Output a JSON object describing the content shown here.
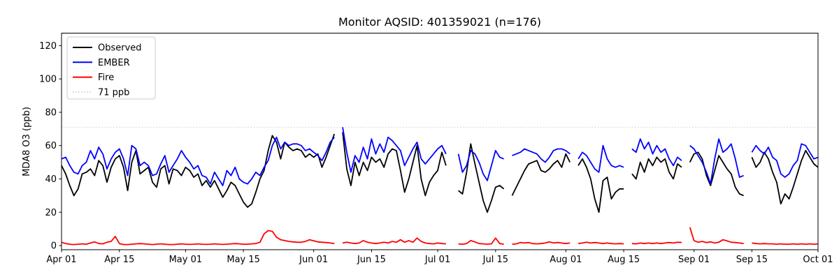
{
  "chart_data": {
    "type": "line",
    "title": "Monitor AQSID: 401359021 (n=176)",
    "xlabel": "",
    "ylabel": "MDA8 O3 (ppb)",
    "x_range_days": [
      0,
      183
    ],
    "x_start_date": "Apr 01",
    "x_end_date": "Oct 01",
    "ylim": [
      -2.5,
      127.5
    ],
    "yticks": [
      0,
      20,
      40,
      60,
      80,
      100,
      120
    ],
    "xticks": [
      {
        "day": 0,
        "label": "Apr 01"
      },
      {
        "day": 14,
        "label": "Apr 15"
      },
      {
        "day": 30,
        "label": "May 01"
      },
      {
        "day": 44,
        "label": "May 15"
      },
      {
        "day": 61,
        "label": "Jun 01"
      },
      {
        "day": 75,
        "label": "Jun 15"
      },
      {
        "day": 91,
        "label": "Jul 01"
      },
      {
        "day": 105,
        "label": "Jul 15"
      },
      {
        "day": 122,
        "label": "Aug 01"
      },
      {
        "day": 136,
        "label": "Aug 15"
      },
      {
        "day": 153,
        "label": "Sep 01"
      },
      {
        "day": 167,
        "label": "Sep 15"
      },
      {
        "day": 183,
        "label": "Oct 01"
      }
    ],
    "grid": false,
    "legend_position": "upper left",
    "threshold": {
      "label": "71 ppb",
      "value": 71,
      "color": "#d3d3d3",
      "style": "dotted"
    },
    "series": [
      {
        "name": "Observed",
        "color": "#000000",
        "values": [
          48,
          43,
          36,
          30,
          34,
          43,
          44,
          46,
          42,
          51,
          48,
          38,
          47,
          52,
          54,
          47,
          33,
          50,
          57,
          43,
          45,
          47,
          38,
          35,
          46,
          48,
          37,
          46,
          45,
          42,
          47,
          45,
          41,
          43,
          36,
          39,
          35,
          39,
          34,
          29,
          33,
          38,
          36,
          31,
          26,
          23,
          25,
          32,
          40,
          45,
          57,
          66,
          62,
          52,
          62,
          59,
          57,
          58,
          57,
          53,
          55,
          53,
          55,
          47,
          53,
          60,
          67,
          null,
          68,
          46,
          36,
          50,
          42,
          50,
          45,
          53,
          50,
          52,
          47,
          55,
          58,
          57,
          45,
          32,
          40,
          50,
          60,
          40,
          30,
          38,
          42,
          45,
          56,
          48,
          null,
          null,
          33,
          31,
          44,
          61,
          49,
          38,
          27,
          20,
          27,
          35,
          36,
          34,
          null,
          30,
          35,
          40,
          45,
          49,
          50,
          51,
          45,
          44,
          46,
          49,
          51,
          47,
          55,
          50,
          null,
          48,
          52,
          47,
          40,
          28,
          20,
          39,
          41,
          28,
          32,
          34,
          34,
          null,
          43,
          40,
          50,
          44,
          52,
          48,
          53,
          50,
          52,
          44,
          40,
          49,
          47,
          null,
          50,
          55,
          56,
          52,
          42,
          36,
          45,
          54,
          50,
          46,
          43,
          35,
          31,
          30,
          null,
          53,
          47,
          50,
          56,
          52,
          44,
          38,
          25,
          31,
          28,
          35,
          43,
          51,
          57,
          53,
          49,
          47
        ]
      },
      {
        "name": "EMBER",
        "color": "#0000ff",
        "values": [
          52,
          53,
          48,
          44,
          43,
          48,
          50,
          57,
          52,
          59,
          55,
          46,
          52,
          56,
          58,
          52,
          42,
          60,
          58,
          48,
          50,
          48,
          42,
          43,
          49,
          54,
          44,
          48,
          52,
          57,
          53,
          50,
          46,
          48,
          42,
          41,
          37,
          44,
          40,
          36,
          45,
          42,
          47,
          40,
          38,
          37,
          40,
          44,
          42,
          47,
          51,
          60,
          65,
          58,
          62,
          60,
          61,
          61,
          60,
          57,
          58,
          56,
          54,
          51,
          56,
          62,
          65,
          null,
          71,
          56,
          44,
          54,
          50,
          59,
          52,
          64,
          55,
          61,
          56,
          65,
          63,
          60,
          57,
          48,
          53,
          58,
          62,
          52,
          49,
          52,
          55,
          58,
          60,
          55,
          null,
          null,
          55,
          44,
          48,
          57,
          55,
          50,
          43,
          39,
          48,
          57,
          53,
          52,
          null,
          54,
          55,
          56,
          58,
          57,
          56,
          55,
          52,
          50,
          53,
          57,
          58,
          58,
          57,
          55,
          null,
          52,
          56,
          54,
          50,
          46,
          44,
          60,
          52,
          48,
          47,
          48,
          47,
          null,
          58,
          56,
          64,
          58,
          62,
          55,
          60,
          56,
          58,
          52,
          48,
          53,
          51,
          null,
          60,
          58,
          54,
          50,
          44,
          37,
          52,
          64,
          56,
          58,
          61,
          52,
          41,
          42,
          null,
          56,
          60,
          57,
          55,
          59,
          53,
          51,
          43,
          41,
          43,
          48,
          51,
          61,
          60,
          56,
          52,
          53
        ]
      },
      {
        "name": "Fire",
        "color": "#ff0000",
        "values": [
          2,
          1.2,
          0.8,
          0.6,
          0.8,
          1,
          0.8,
          1.5,
          2.2,
          1.2,
          1,
          2,
          2.5,
          5.5,
          1.2,
          0.6,
          0.6,
          0.8,
          1,
          1.2,
          1,
          0.8,
          0.6,
          0.8,
          1,
          0.8,
          0.6,
          0.6,
          0.8,
          1,
          0.8,
          0.7,
          0.8,
          1,
          0.8,
          0.7,
          0.8,
          1,
          0.8,
          0.7,
          0.8,
          1,
          1.2,
          1,
          0.8,
          0.8,
          1,
          1.2,
          2,
          7,
          9,
          8.5,
          5,
          3.5,
          3,
          2.5,
          2.2,
          2,
          2,
          2.5,
          3.5,
          2.8,
          2.2,
          2,
          1.8,
          1.5,
          1.2,
          null,
          1.5,
          2,
          1.5,
          1.2,
          1.5,
          3,
          2,
          1.5,
          1.2,
          1.5,
          2,
          1.5,
          2.5,
          2,
          3.5,
          2,
          3,
          2,
          4.5,
          2.5,
          1.5,
          1.2,
          1,
          1.5,
          1.2,
          1,
          null,
          null,
          1,
          0.8,
          1.2,
          3,
          2.2,
          1.2,
          1,
          0.8,
          1,
          4.5,
          1.2,
          0.8,
          null,
          0.8,
          1,
          1.8,
          1.5,
          1.8,
          1.2,
          1,
          1.2,
          1.5,
          2.2,
          1.5,
          1.8,
          1.5,
          1.2,
          1.5,
          null,
          1.2,
          1.5,
          2,
          1.5,
          1.8,
          1.5,
          1.2,
          1.5,
          1.2,
          1,
          1.2,
          1,
          null,
          1.2,
          1,
          1.5,
          1.2,
          1.5,
          1.2,
          1.5,
          1.2,
          1.5,
          1.8,
          1.5,
          2,
          1.8,
          null,
          11,
          3,
          2,
          2.5,
          1.8,
          2.2,
          1.5,
          2,
          3.5,
          2.8,
          2,
          1.8,
          1.5,
          1.2,
          null,
          1.5,
          1.2,
          1,
          1.2,
          1,
          1,
          0.8,
          1,
          0.8,
          0.8,
          1,
          0.8,
          1,
          0.8,
          1,
          0.8,
          1
        ]
      }
    ]
  }
}
